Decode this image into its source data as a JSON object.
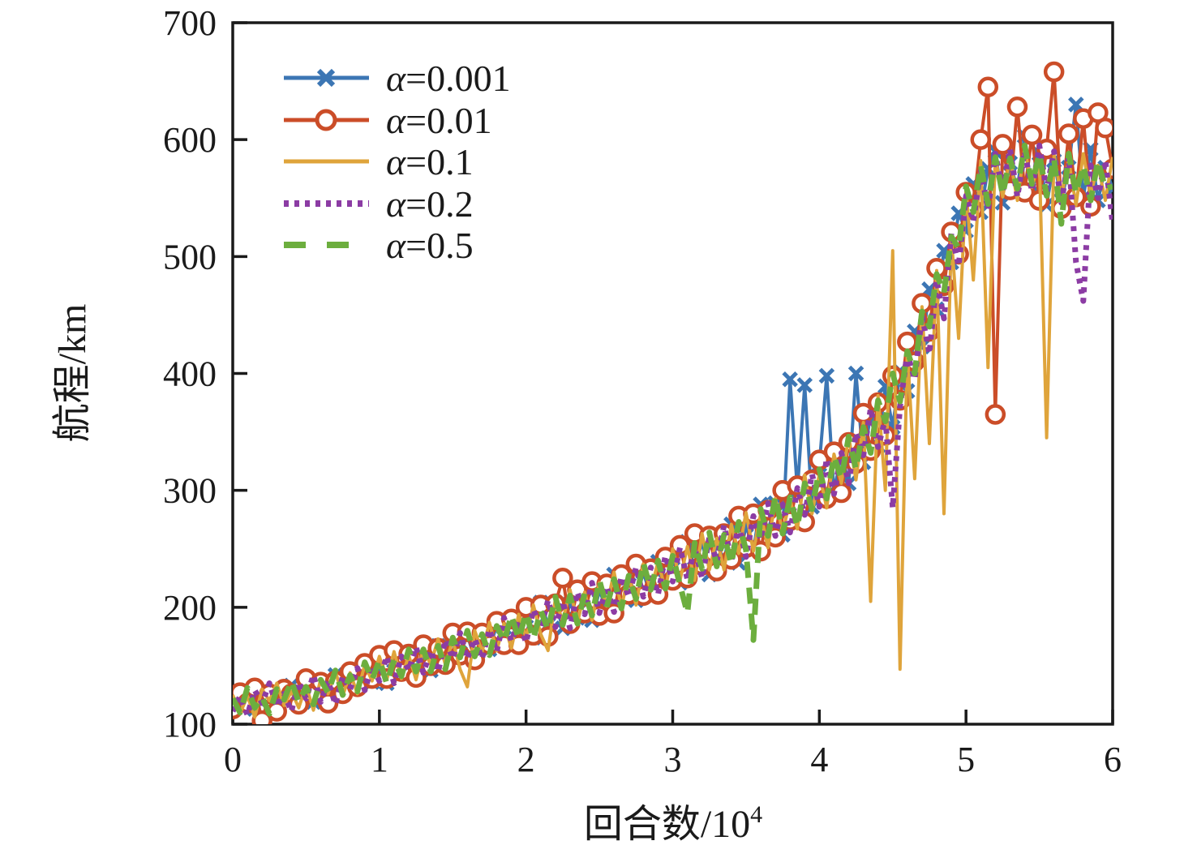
{
  "axes": {
    "x_label_main": "回合数/10",
    "x_label_sup": "4",
    "y_label": "航程/km",
    "x_ticks": [
      0,
      1,
      2,
      3,
      4,
      5,
      6
    ],
    "y_ticks": [
      100,
      200,
      300,
      400,
      500,
      600,
      700
    ],
    "frame_color": "#1a1a1a"
  },
  "legend": {
    "position": "upper-left",
    "labels": [
      "α=0.001",
      "α=0.01",
      "α=0.1",
      "α=0.2",
      "α=0.5"
    ]
  },
  "chart_data": {
    "type": "line",
    "title": "",
    "xlabel": "回合数/10⁴",
    "ylabel": "航程/km",
    "xlim": [
      0,
      6
    ],
    "ylim": [
      100,
      700
    ],
    "grid": false,
    "x_start": 0,
    "x_step": 0.05,
    "series": [
      {
        "name": "alpha-0.001",
        "label": "α=0.001",
        "color": "#3C76B4",
        "style": "solid",
        "marker": "x",
        "values": [
          124,
          115,
          129,
          113,
          123,
          112,
          128,
          123,
          133,
          120,
          130,
          119,
          136,
          129,
          142,
          128,
          142,
          134,
          150,
          136,
          149,
          135,
          154,
          148,
          161,
          146,
          158,
          146,
          167,
          154,
          175,
          161,
          176,
          156,
          175,
          164,
          185,
          174,
          186,
          172,
          192,
          174,
          204,
          185,
          204,
          182,
          203,
          191,
          216,
          189,
          214,
          199,
          228,
          209,
          228,
          206,
          230,
          209,
          239,
          223,
          242,
          221,
          256,
          233,
          256,
          228,
          255,
          240,
          271,
          238,
          270,
          249,
          288,
          265,
          289,
          262,
          395,
          300,
          390,
          286,
          322,
          398,
          298,
          332,
          306,
          400,
          324,
          366,
          338,
          389,
          354,
          402,
          385,
          436,
          423,
          472,
          455,
          505,
          495,
          537,
          522,
          562,
          538,
          575,
          590,
          546,
          580,
          558,
          603,
          554,
          588,
          544,
          582,
          548,
          576,
          630,
          550,
          592,
          548,
          576,
          558
        ]
      },
      {
        "name": "alpha-0.01",
        "label": "α=0.01",
        "color": "#CB4D28",
        "style": "solid",
        "marker": "circle",
        "values": [
          113,
          127,
          118,
          131,
          103,
          126,
          111,
          130,
          126,
          117,
          139,
          125,
          136,
          118,
          137,
          126,
          145,
          132,
          152,
          139,
          159,
          139,
          163,
          145,
          160,
          140,
          168,
          150,
          165,
          151,
          178,
          159,
          179,
          155,
          178,
          168,
          188,
          168,
          190,
          168,
          200,
          176,
          202,
          175,
          203,
          225,
          186,
          215,
          195,
          222,
          193,
          220,
          195,
          228,
          211,
          237,
          210,
          233,
          211,
          243,
          223,
          253,
          225,
          263,
          236,
          261,
          231,
          263,
          241,
          278,
          251,
          280,
          248,
          283,
          260,
          300,
          274,
          304,
          273,
          309,
          326,
          293,
          333,
          298,
          341,
          323,
          366,
          334,
          375,
          347,
          398,
          377,
          427,
          410,
          460,
          436,
          490,
          475,
          521,
          502,
          555,
          540,
          600,
          645,
          365,
          596,
          557,
          628,
          555,
          604,
          548,
          592,
          658,
          541,
          605,
          551,
          618,
          543,
          623,
          610,
          575
        ]
      },
      {
        "name": "alpha-0.1",
        "label": "α=0.1",
        "color": "#DFA43B",
        "style": "solid",
        "marker": null,
        "values": [
          125,
          109,
          124,
          106,
          130,
          120,
          135,
          116,
          128,
          114,
          133,
          112,
          139,
          126,
          145,
          124,
          144,
          126,
          151,
          137,
          158,
          138,
          162,
          139,
          159,
          138,
          165,
          151,
          173,
          151,
          172,
          147,
          132,
          180,
          162,
          187,
          163,
          186,
          165,
          194,
          174,
          202,
          177,
          163,
          207,
          188,
          215,
          187,
          213,
          189,
          221,
          201,
          230,
          200,
          228,
          202,
          237,
          214,
          239,
          215,
          250,
          223,
          252,
          223,
          263,
          232,
          259,
          232,
          271,
          246,
          281,
          248,
          280,
          251,
          293,
          264,
          292,
          267,
          313,
          280,
          314,
          285,
          331,
          306,
          346,
          309,
          358,
          205,
          381,
          300,
          505,
          147,
          420,
          310,
          457,
          340,
          488,
          280,
          517,
          430,
          558,
          480,
          582,
          405,
          585,
          551,
          584,
          548,
          593,
          559,
          583,
          345,
          587,
          551,
          582,
          544,
          588,
          553,
          578,
          548,
          585
        ]
      },
      {
        "name": "alpha-0.2",
        "label": "α=0.2",
        "color": "#8C3CA4",
        "style": "dotted",
        "marker": null,
        "values": [
          111,
          124,
          108,
          129,
          118,
          135,
          115,
          126,
          111,
          136,
          122,
          142,
          119,
          137,
          117,
          141,
          130,
          148,
          129,
          150,
          137,
          158,
          135,
          158,
          146,
          166,
          144,
          163,
          145,
          172,
          156,
          178,
          156,
          173,
          156,
          181,
          162,
          191,
          171,
          188,
          170,
          198,
          182,
          206,
          183,
          205,
          182,
          213,
          194,
          221,
          195,
          218,
          196,
          226,
          209,
          234,
          209,
          234,
          211,
          244,
          222,
          251,
          224,
          251,
          225,
          260,
          239,
          270,
          240,
          270,
          243,
          278,
          258,
          289,
          261,
          288,
          264,
          302,
          279,
          314,
          286,
          327,
          297,
          332,
          306,
          349,
          330,
          370,
          337,
          361,
          285,
          372,
          417,
          395,
          450,
          417,
          480,
          447,
          520,
          492,
          552,
          530,
          575,
          540,
          588,
          556,
          592,
          551,
          590,
          556,
          595,
          557,
          590,
          546,
          585,
          495,
          462,
          578,
          550,
          582,
          528
        ]
      },
      {
        "name": "alpha-0.5",
        "label": "α=0.5",
        "color": "#6CAE3E",
        "style": "dashed",
        "marker": null,
        "values": [
          122,
          110,
          131,
          114,
          123,
          109,
          130,
          121,
          137,
          119,
          132,
          117,
          138,
          127,
          146,
          125,
          142,
          128,
          153,
          138,
          155,
          135,
          155,
          141,
          164,
          145,
          164,
          145,
          167,
          147,
          174,
          157,
          180,
          158,
          177,
          159,
          184,
          171,
          193,
          173,
          195,
          173,
          197,
          181,
          209,
          185,
          210,
          186,
          212,
          193,
          223,
          200,
          224,
          199,
          227,
          207,
          238,
          215,
          240,
          216,
          244,
          219,
          195,
          255,
          233,
          264,
          235,
          262,
          237,
          273,
          249,
          172,
          284,
          261,
          295,
          263,
          294,
          269,
          306,
          284,
          318,
          293,
          329,
          310,
          346,
          318,
          354,
          332,
          377,
          359,
          400,
          376,
          419,
          400,
          453,
          440,
          485,
          469,
          517,
          507,
          560,
          538,
          578,
          545,
          585,
          553,
          584,
          558,
          595,
          562,
          588,
          552,
          584,
          528,
          588,
          554,
          578,
          548,
          582,
          558,
          560
        ]
      }
    ]
  }
}
